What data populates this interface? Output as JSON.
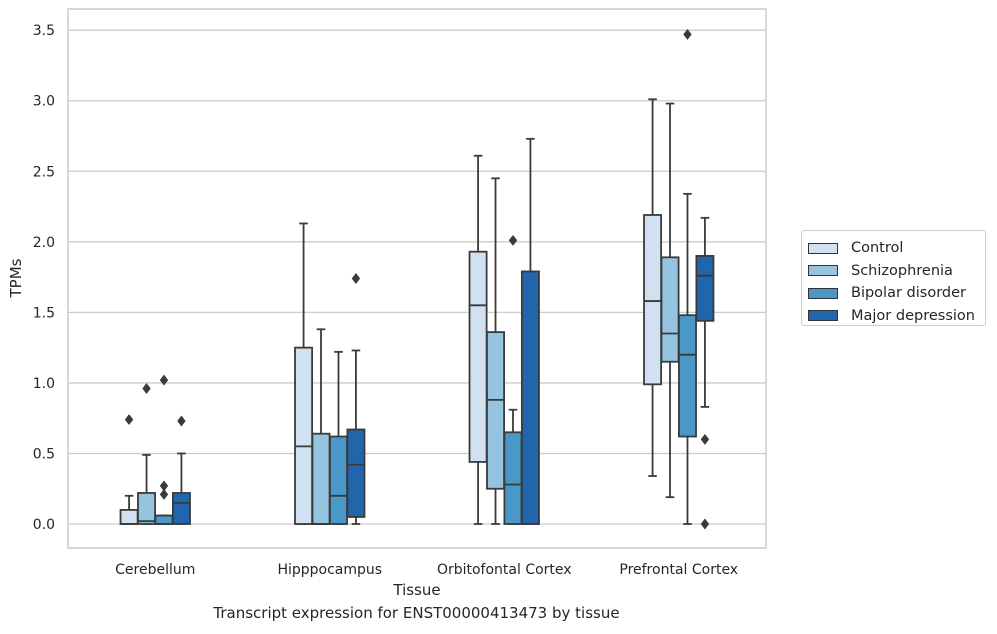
{
  "chart_data": {
    "type": "box",
    "title": "",
    "xlabel": "Tissue",
    "ylabel": "TPMs",
    "caption": "Transcript expression for ENST00000413473 by tissue",
    "ylim": [
      -0.17,
      3.65
    ],
    "yticks": [
      0.0,
      0.5,
      1.0,
      1.5,
      2.0,
      2.5,
      3.0,
      3.5
    ],
    "ytick_labels": [
      "0.0",
      "0.5",
      "1.0",
      "1.5",
      "2.0",
      "2.5",
      "3.0",
      "3.5"
    ],
    "grid": "horizontal",
    "legend_position": "right",
    "categories": [
      "Cerebellum",
      "Hipppocampus",
      "Orbitofontal Cortex",
      "Prefrontal Cortex"
    ],
    "series": [
      {
        "name": "Control",
        "color": "#d0e1f2",
        "boxes": [
          {
            "whislo": 0.0,
            "q1": 0.0,
            "median": 0.0,
            "q3": 0.1,
            "whishi": 0.2,
            "fliers": [
              0.74
            ]
          },
          {
            "whislo": 0.0,
            "q1": 0.0,
            "median": 0.55,
            "q3": 1.25,
            "whishi": 2.13,
            "fliers": []
          },
          {
            "whislo": 0.0,
            "q1": 0.44,
            "median": 1.55,
            "q3": 1.93,
            "whishi": 2.61,
            "fliers": []
          },
          {
            "whislo": 0.34,
            "q1": 0.99,
            "median": 1.58,
            "q3": 2.19,
            "whishi": 3.01,
            "fliers": []
          }
        ]
      },
      {
        "name": "Schizophrenia",
        "color": "#94c4df",
        "boxes": [
          {
            "whislo": 0.0,
            "q1": 0.0,
            "median": 0.02,
            "q3": 0.22,
            "whishi": 0.49,
            "fliers": [
              0.96
            ]
          },
          {
            "whislo": 0.0,
            "q1": 0.0,
            "median": 0.0,
            "q3": 0.64,
            "whishi": 1.38,
            "fliers": []
          },
          {
            "whislo": 0.0,
            "q1": 0.25,
            "median": 0.88,
            "q3": 1.36,
            "whishi": 2.45,
            "fliers": []
          },
          {
            "whislo": 0.19,
            "q1": 1.15,
            "median": 1.35,
            "q3": 1.89,
            "whishi": 2.98,
            "fliers": []
          }
        ]
      },
      {
        "name": "Bipolar disorder",
        "color": "#4a98c9",
        "boxes": [
          {
            "whislo": 0.0,
            "q1": 0.0,
            "median": 0.0,
            "q3": 0.06,
            "whishi": 0.06,
            "fliers": [
              0.21,
              0.27,
              1.02
            ]
          },
          {
            "whislo": 0.0,
            "q1": 0.0,
            "median": 0.2,
            "q3": 0.62,
            "whishi": 1.22,
            "fliers": []
          },
          {
            "whislo": 0.0,
            "q1": 0.0,
            "median": 0.28,
            "q3": 0.65,
            "whishi": 0.81,
            "fliers": [
              2.01
            ]
          },
          {
            "whislo": 0.0,
            "q1": 0.62,
            "median": 1.2,
            "q3": 1.48,
            "whishi": 2.34,
            "fliers": [
              3.47
            ]
          }
        ]
      },
      {
        "name": "Major depression",
        "color": "#2166ac",
        "boxes": [
          {
            "whislo": 0.0,
            "q1": 0.0,
            "median": 0.15,
            "q3": 0.22,
            "whishi": 0.5,
            "fliers": [
              0.73
            ]
          },
          {
            "whislo": 0.0,
            "q1": 0.05,
            "median": 0.42,
            "q3": 0.67,
            "whishi": 1.23,
            "fliers": [
              1.74
            ]
          },
          {
            "whislo": 0.0,
            "q1": 0.0,
            "median": 0.0,
            "q3": 1.79,
            "whishi": 2.73,
            "fliers": []
          },
          {
            "whislo": 0.83,
            "q1": 1.44,
            "median": 1.76,
            "q3": 1.9,
            "whishi": 2.17,
            "fliers": [
              0.0,
              0.6
            ]
          }
        ]
      }
    ]
  }
}
